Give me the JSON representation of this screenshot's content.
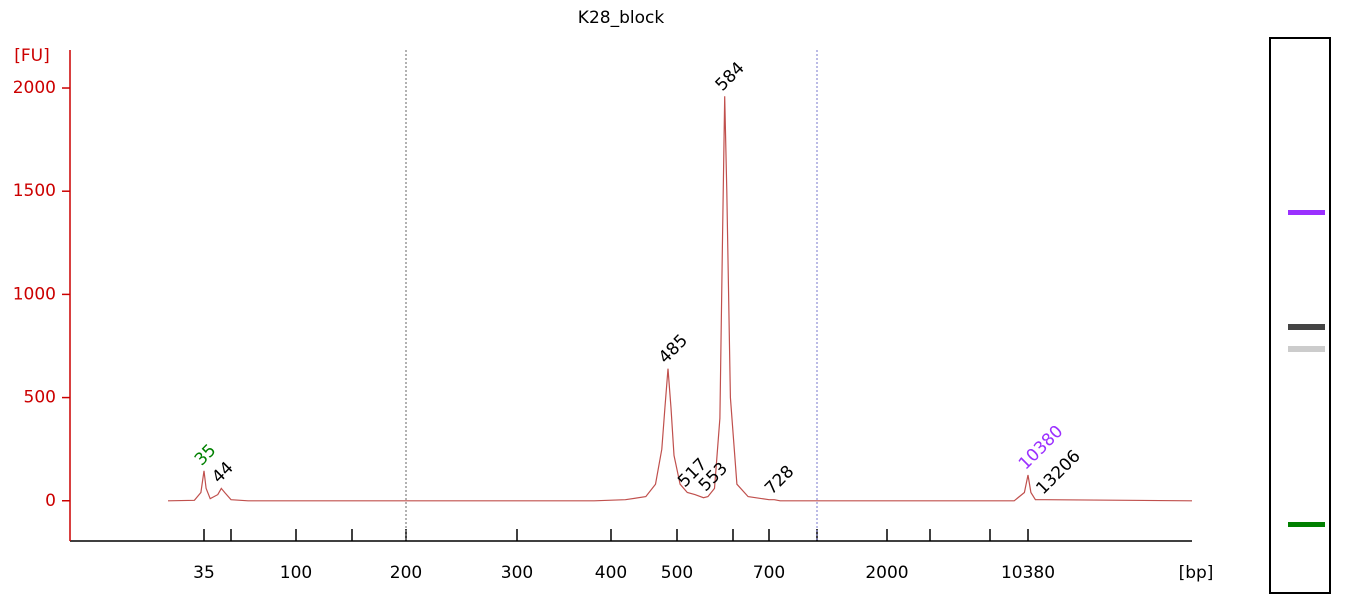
{
  "chart_data": {
    "type": "line",
    "title": "K28_block",
    "y_label": "[FU]",
    "x_label": "[bp]",
    "xlim": [
      10,
      100000
    ],
    "ylim": [
      -195,
      2160
    ],
    "yticks": [
      0,
      500,
      1000,
      1500,
      2000
    ],
    "xticks": [
      35,
      {
        "value": 50,
        "label": null
      },
      100,
      {
        "value": 150,
        "label": null
      },
      200,
      300,
      400,
      500,
      {
        "value": 600,
        "label": null
      },
      700,
      {
        "value": 1000,
        "label": null
      },
      2000,
      {
        "value": 3000,
        "label": null
      },
      {
        "value": 7000,
        "label": null
      },
      10380
    ],
    "vlines": [
      {
        "x": 200,
        "color": "#666666"
      },
      {
        "x": 1000,
        "color": "#7777cc"
      }
    ],
    "series": [
      {
        "color": "#c0504d",
        "x": [
          25,
          32,
          34,
          35,
          36,
          38,
          42,
          44,
          46,
          50,
          60,
          380,
          420,
          450,
          465,
          475,
          480,
          485,
          490,
          495,
          505,
          517,
          530,
          545,
          553,
          565,
          575,
          580,
          584,
          588,
          595,
          610,
          640,
          700,
          728,
          760,
          9000,
          10000,
          10380,
          10800,
          11500,
          13206,
          100000
        ],
        "values": [
          0,
          2,
          40,
          145,
          60,
          10,
          30,
          60,
          40,
          5,
          0,
          0,
          5,
          20,
          80,
          250,
          450,
          640,
          450,
          220,
          80,
          40,
          30,
          15,
          20,
          60,
          400,
          1300,
          1960,
          1500,
          500,
          80,
          20,
          5,
          5,
          0,
          0,
          40,
          125,
          40,
          5,
          5,
          0
        ]
      }
    ],
    "peaks": [
      {
        "x": 35,
        "y": 145,
        "color": "#008000"
      },
      {
        "x": 44,
        "y": 60,
        "color": "#000000"
      },
      {
        "x": 485,
        "y": 640,
        "color": "#000000"
      },
      {
        "x": 517,
        "y": 40,
        "color": "#000000"
      },
      {
        "x": 553,
        "y": 20,
        "color": "#000000"
      },
      {
        "x": 584,
        "y": 1960,
        "color": "#000000"
      },
      {
        "x": 728,
        "y": 5,
        "color": "#000000"
      },
      {
        "x": 10380,
        "y": 125,
        "color": "#9b30ff"
      },
      {
        "x": 13206,
        "y": 5,
        "color": "#000000"
      }
    ]
  }
}
